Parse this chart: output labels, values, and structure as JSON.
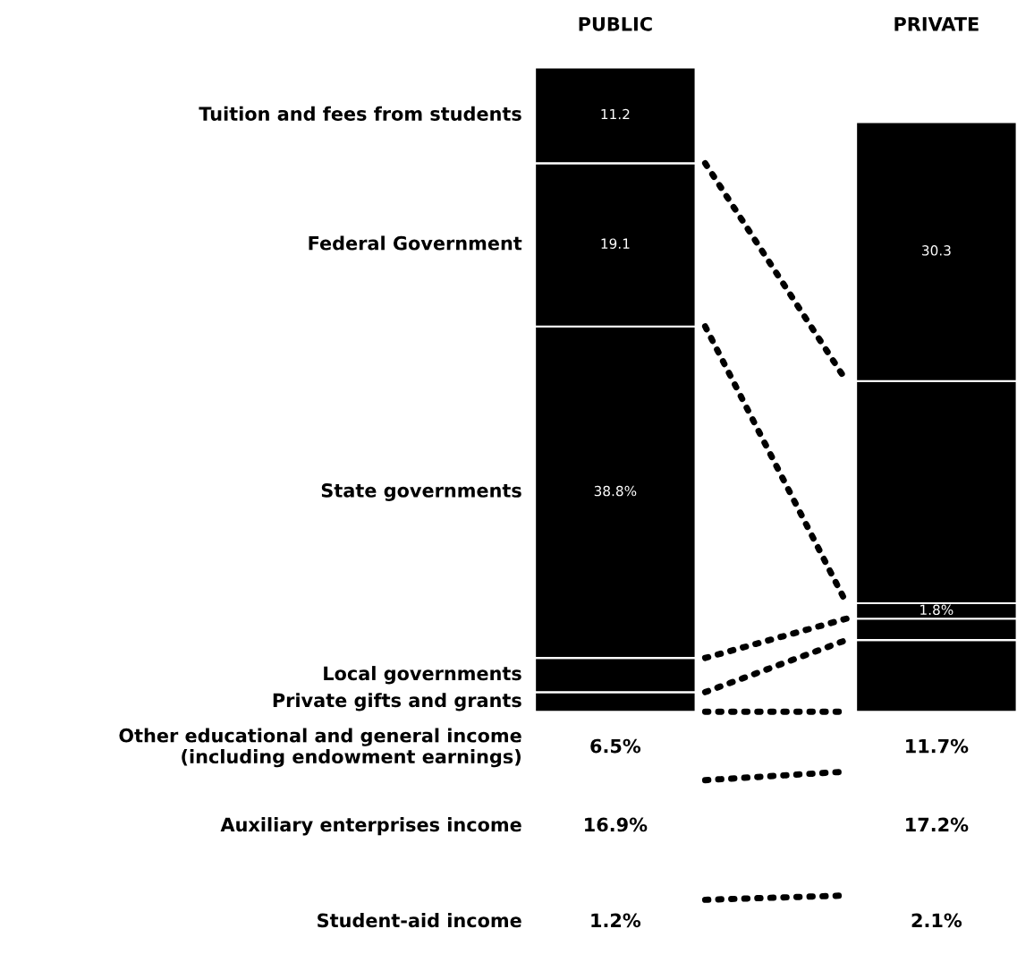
{
  "chart_data": {
    "type": "bar",
    "stacked": true,
    "categories": [
      "PUBLIC",
      "PRIVATE"
    ],
    "series": [
      {
        "name": "Private gifts and grants",
        "color": "#000000",
        "values": [
          2.3,
          8.4
        ],
        "value_labels": [
          null,
          null
        ]
      },
      {
        "name": "Local governments",
        "color": "#000000",
        "values": [
          4.0,
          2.5
        ],
        "value_labels": [
          null,
          null
        ]
      },
      {
        "name": "State governments",
        "color": "#000000",
        "values": [
          38.8,
          1.8
        ],
        "value_labels": [
          "38.8%",
          "1.8%"
        ]
      },
      {
        "name": "Federal Government",
        "color": "#000000",
        "values": [
          19.1,
          26.0
        ],
        "value_labels": [
          "19.1",
          null
        ]
      },
      {
        "name": "Tuition and fees from students",
        "color": "#000000",
        "values": [
          11.2,
          30.3
        ],
        "value_labels": [
          "11.2",
          "30.3"
        ]
      }
    ],
    "annotations": [
      "Other educational and general income\n(including endowment earnings)",
      "6.5%",
      "11.7%",
      "Auxiliary enterprises income",
      "16.9%",
      "17.2%",
      "Student-aid income",
      "1.2%",
      "2.1%"
    ]
  }
}
